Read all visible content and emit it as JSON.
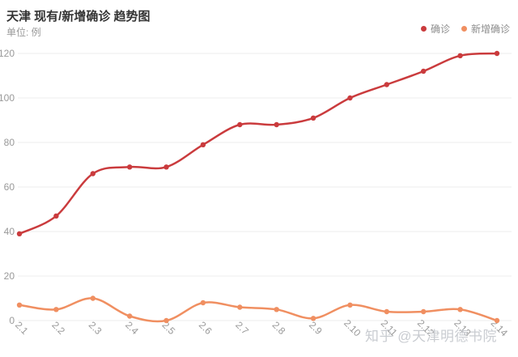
{
  "header": {
    "title": "天津 现有/新增确诊 趋势图",
    "subtitle": "单位: 例"
  },
  "legend": {
    "items": [
      {
        "label": "确诊",
        "color": "#ca3b3d"
      },
      {
        "label": "新增确诊",
        "color": "#f08f61"
      }
    ]
  },
  "watermark": {
    "text": "知乎 @天津明德书院"
  },
  "colors": {
    "title_text": "#333333",
    "axis_text": "#999999",
    "grid_line": "#ededed",
    "series_confirmed": "#ca3b3d",
    "series_new": "#f08f61",
    "watermark_text": "#c9ccd1"
  },
  "chart_data": {
    "type": "line",
    "title": "天津 现有/新增确诊 趋势图",
    "unit_label": "单位: 例",
    "categories": [
      "2.1",
      "2.2",
      "2.3",
      "2.4",
      "2.5",
      "2.6",
      "2.7",
      "2.8",
      "2.9",
      "2.10",
      "2.11",
      "2.12",
      "2.13",
      "2.14"
    ],
    "series": [
      {
        "name": "确诊",
        "color": "#ca3b3d",
        "smooth": true,
        "values": [
          39,
          47,
          66,
          69,
          69,
          79,
          88,
          88,
          91,
          100,
          106,
          112,
          119,
          120
        ]
      },
      {
        "name": "新增确诊",
        "color": "#f08f61",
        "smooth": true,
        "values": [
          7,
          5,
          10,
          2,
          0,
          8,
          6,
          5,
          1,
          7,
          4,
          4,
          5,
          0
        ]
      }
    ],
    "xlabel": "",
    "ylabel": "例",
    "ylim": [
      0,
      120
    ],
    "ytick_step": 20,
    "yticks": [
      0,
      20,
      40,
      60,
      80,
      100,
      120
    ],
    "grid": true,
    "legend_position": "top-right",
    "x_label_rotate_deg": 45
  }
}
